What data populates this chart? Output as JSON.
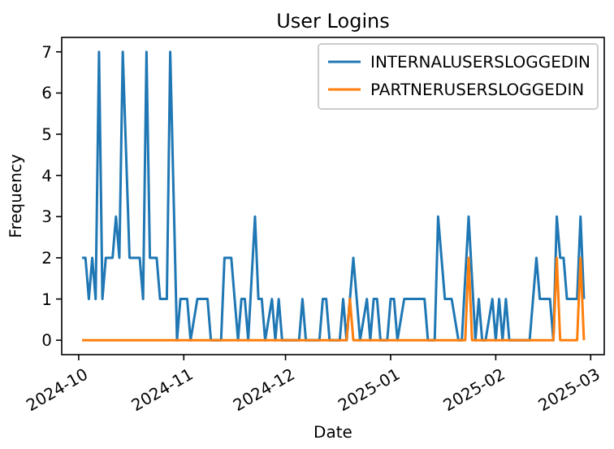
{
  "chart_data": {
    "type": "line",
    "title": "User Logins",
    "xlabel": "Date",
    "ylabel": "Frequency",
    "xlim": [
      "2024-09-26",
      "2025-03-05"
    ],
    "xticks": [
      {
        "value": "2024-10-01",
        "label": "2024-10"
      },
      {
        "value": "2024-11-01",
        "label": "2024-11"
      },
      {
        "value": "2024-12-01",
        "label": "2024-12"
      },
      {
        "value": "2025-01-01",
        "label": "2025-01"
      },
      {
        "value": "2025-02-01",
        "label": "2025-02"
      },
      {
        "value": "2025-03-01",
        "label": "2025-03"
      }
    ],
    "ylim": [
      -0.35,
      7.35
    ],
    "yticks": [
      0,
      1,
      2,
      3,
      4,
      5,
      6,
      7
    ],
    "legend": "top right",
    "grid": false,
    "marker": "none",
    "line_style": "solid",
    "series": [
      {
        "name": "INTERNALUSERSLOGGEDIN",
        "color": "#1f77b4",
        "x": [
          "2024-10-02",
          "2024-10-03",
          "2024-10-04",
          "2024-10-05",
          "2024-10-06",
          "2024-10-07",
          "2024-10-08",
          "2024-10-09",
          "2024-10-11",
          "2024-10-12",
          "2024-10-13",
          "2024-10-14",
          "2024-10-16",
          "2024-10-19",
          "2024-10-20",
          "2024-10-21",
          "2024-10-22",
          "2024-10-24",
          "2024-10-25",
          "2024-10-27",
          "2024-10-28",
          "2024-10-30",
          "2024-10-31",
          "2024-11-02",
          "2024-11-03",
          "2024-11-05",
          "2024-11-08",
          "2024-11-09",
          "2024-11-12",
          "2024-11-13",
          "2024-11-15",
          "2024-11-17",
          "2024-11-18",
          "2024-11-19",
          "2024-11-20",
          "2024-11-22",
          "2024-11-23",
          "2024-11-24",
          "2024-11-25",
          "2024-11-27",
          "2024-11-28",
          "2024-11-29",
          "2024-11-30",
          "2024-12-05",
          "2024-12-06",
          "2024-12-07",
          "2024-12-11",
          "2024-12-12",
          "2024-12-13",
          "2024-12-14",
          "2024-12-17",
          "2024-12-18",
          "2024-12-19",
          "2024-12-20",
          "2024-12-21",
          "2024-12-22",
          "2024-12-23",
          "2024-12-25",
          "2024-12-26",
          "2024-12-27",
          "2024-12-28",
          "2024-12-29",
          "2024-12-31",
          "2025-01-01",
          "2025-01-02",
          "2025-01-03",
          "2025-01-05",
          "2025-01-11",
          "2025-01-12",
          "2025-01-14",
          "2025-01-15",
          "2025-01-17",
          "2025-01-19",
          "2025-01-21",
          "2025-01-22",
          "2025-01-24",
          "2025-01-26",
          "2025-01-27",
          "2025-01-28",
          "2025-01-29",
          "2025-01-31",
          "2025-02-01",
          "2025-02-02",
          "2025-02-03",
          "2025-02-04",
          "2025-02-05",
          "2025-02-11",
          "2025-02-13",
          "2025-02-14",
          "2025-02-17",
          "2025-02-18",
          "2025-02-19",
          "2025-02-20",
          "2025-02-21",
          "2025-02-22",
          "2025-02-25",
          "2025-02-26",
          "2025-02-27"
        ],
        "values": [
          2,
          2,
          1,
          2,
          1,
          7,
          1,
          2,
          2,
          3,
          2,
          7,
          2,
          2,
          1,
          7,
          2,
          2,
          1,
          1,
          7,
          0,
          1,
          1,
          0,
          1,
          1,
          0,
          0,
          2,
          2,
          0,
          1,
          1,
          0,
          3,
          1,
          1,
          0,
          1,
          0,
          1,
          0,
          0,
          1,
          0,
          0,
          1,
          1,
          0,
          0,
          1,
          0,
          1,
          2,
          1,
          0,
          1,
          0,
          1,
          1,
          0,
          0,
          1,
          1,
          0,
          1,
          1,
          0,
          0,
          3,
          1,
          1,
          0,
          0,
          3,
          0,
          1,
          0,
          0,
          1,
          0,
          1,
          0,
          1,
          0,
          0,
          2,
          1,
          1,
          0,
          3,
          2,
          2,
          1,
          1,
          3,
          1
        ]
      },
      {
        "name": "PARTNERUSERSLOGGEDIN",
        "color": "#ff7f0e",
        "x": [
          "2024-10-02",
          "2024-12-19",
          "2024-12-20",
          "2024-12-21",
          "2025-01-23",
          "2025-01-24",
          "2025-01-25",
          "2025-02-18",
          "2025-02-19",
          "2025-02-20",
          "2025-02-25",
          "2025-02-26",
          "2025-02-27"
        ],
        "values": [
          0,
          0,
          1,
          0,
          0,
          2,
          0,
          0,
          2,
          0,
          0,
          2,
          0
        ]
      }
    ]
  }
}
